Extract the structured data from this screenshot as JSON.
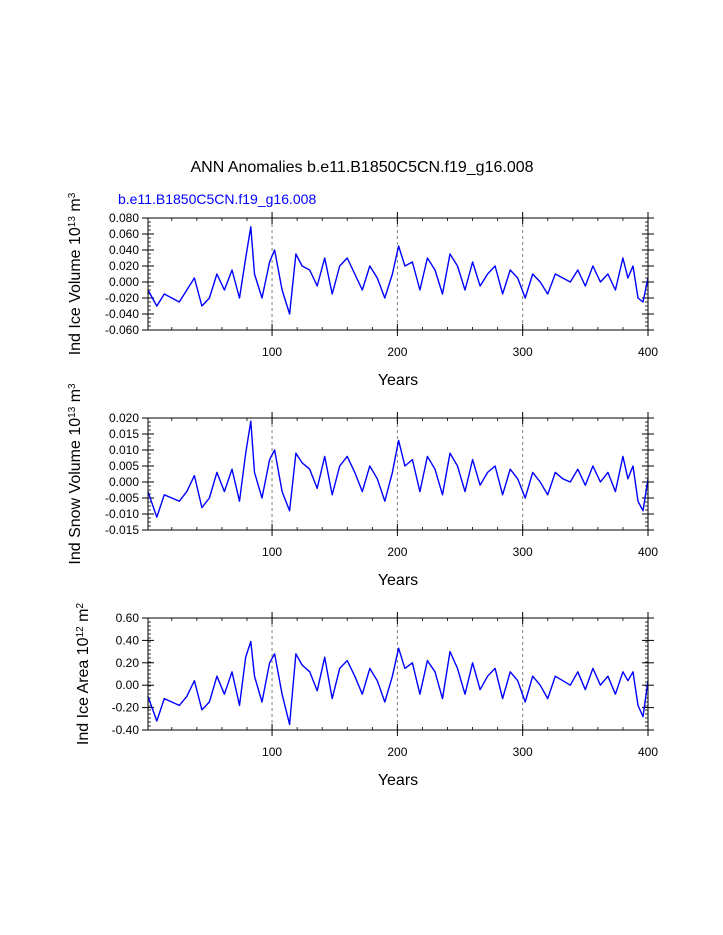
{
  "figure": {
    "title": "ANN Anomalies b.e11.B1850C5CN.f19_g16.008",
    "case_label": "b.e11.B1850C5CN.f19_g16.008",
    "line_color": "#0000ff",
    "ref_line_color": "#808080"
  },
  "chart_data": [
    {
      "type": "line",
      "name": "ice-volume",
      "title": "",
      "xlabel": "Years",
      "ylabel": {
        "prefix": "Ind Ice Volume 10",
        "exp1": "13",
        "mid": " m",
        "exp2": "3"
      },
      "xlim": [
        1,
        400
      ],
      "ylim": [
        -0.06,
        0.08
      ],
      "xticks": [
        100,
        200,
        300,
        400
      ],
      "xtick_labels": [
        "100",
        "200",
        "300",
        "400"
      ],
      "yticks": [
        -0.06,
        -0.04,
        -0.02,
        0.0,
        0.02,
        0.04,
        0.06,
        0.08
      ],
      "ytick_labels": [
        "-0.060",
        "-0.040",
        "-0.020",
        "0.000",
        "0.020",
        "0.040",
        "0.060",
        "0.080"
      ],
      "vlines": [
        100,
        200,
        300
      ],
      "series": [
        {
          "name": "Ind Ice Volume",
          "x": [
            1,
            8,
            14,
            20,
            26,
            32,
            38,
            44,
            50,
            56,
            62,
            68,
            74,
            79,
            83,
            86,
            92,
            98,
            102,
            108,
            114,
            119,
            124,
            130,
            136,
            142,
            148,
            154,
            160,
            166,
            172,
            178,
            184,
            190,
            196,
            201,
            206,
            212,
            218,
            224,
            230,
            236,
            242,
            248,
            254,
            260,
            266,
            272,
            278,
            284,
            290,
            296,
            302,
            308,
            314,
            320,
            326,
            332,
            338,
            344,
            350,
            356,
            362,
            368,
            374,
            380,
            384,
            388,
            392,
            396,
            400
          ],
          "values": [
            -0.01,
            -0.03,
            -0.015,
            -0.02,
            -0.025,
            -0.01,
            0.005,
            -0.03,
            -0.02,
            0.01,
            -0.01,
            0.015,
            -0.02,
            0.03,
            0.069,
            0.01,
            -0.02,
            0.025,
            0.04,
            -0.01,
            -0.04,
            0.035,
            0.02,
            0.015,
            -0.005,
            0.03,
            -0.015,
            0.02,
            0.03,
            0.01,
            -0.01,
            0.02,
            0.005,
            -0.02,
            0.01,
            0.045,
            0.02,
            0.025,
            -0.01,
            0.03,
            0.015,
            -0.015,
            0.035,
            0.02,
            -0.01,
            0.025,
            -0.005,
            0.01,
            0.02,
            -0.015,
            0.015,
            0.005,
            -0.02,
            0.01,
            0.0,
            -0.015,
            0.01,
            0.005,
            0.0,
            0.015,
            -0.005,
            0.02,
            0.0,
            0.01,
            -0.01,
            0.03,
            0.005,
            0.02,
            -0.02,
            -0.025,
            0.005
          ]
        }
      ]
    },
    {
      "type": "line",
      "name": "snow-volume",
      "title": "",
      "xlabel": "Years",
      "ylabel": {
        "prefix": "Ind Snow Volume 10",
        "exp1": "13",
        "mid": " m",
        "exp2": "3"
      },
      "xlim": [
        1,
        400
      ],
      "ylim": [
        -0.015,
        0.02
      ],
      "xticks": [
        100,
        200,
        300,
        400
      ],
      "xtick_labels": [
        "100",
        "200",
        "300",
        "400"
      ],
      "yticks": [
        -0.015,
        -0.01,
        -0.005,
        0.0,
        0.005,
        0.01,
        0.015,
        0.02
      ],
      "ytick_labels": [
        "-0.015",
        "-0.010",
        "-0.005",
        "0.000",
        "0.005",
        "0.010",
        "0.015",
        "0.020"
      ],
      "vlines": [
        100,
        200,
        300
      ],
      "series": [
        {
          "name": "Ind Snow Volume",
          "x": [
            1,
            8,
            14,
            20,
            26,
            32,
            38,
            44,
            50,
            56,
            62,
            68,
            74,
            79,
            83,
            86,
            92,
            98,
            102,
            108,
            114,
            119,
            124,
            130,
            136,
            142,
            148,
            154,
            160,
            166,
            172,
            178,
            184,
            190,
            196,
            201,
            206,
            212,
            218,
            224,
            230,
            236,
            242,
            248,
            254,
            260,
            266,
            272,
            278,
            284,
            290,
            296,
            302,
            308,
            314,
            320,
            326,
            332,
            338,
            344,
            350,
            356,
            362,
            368,
            374,
            380,
            384,
            388,
            392,
            396,
            400
          ],
          "values": [
            -0.003,
            -0.011,
            -0.004,
            -0.005,
            -0.006,
            -0.003,
            0.002,
            -0.008,
            -0.005,
            0.003,
            -0.003,
            0.004,
            -0.006,
            0.009,
            0.019,
            0.003,
            -0.005,
            0.007,
            0.01,
            -0.003,
            -0.009,
            0.009,
            0.006,
            0.004,
            -0.002,
            0.008,
            -0.004,
            0.005,
            0.008,
            0.003,
            -0.003,
            0.005,
            0.001,
            -0.006,
            0.003,
            0.013,
            0.005,
            0.007,
            -0.003,
            0.008,
            0.004,
            -0.004,
            0.009,
            0.005,
            -0.003,
            0.007,
            -0.001,
            0.003,
            0.005,
            -0.004,
            0.004,
            0.001,
            -0.005,
            0.003,
            0.0,
            -0.004,
            0.003,
            0.001,
            0.0,
            0.004,
            -0.001,
            0.005,
            0.0,
            0.003,
            -0.003,
            0.008,
            0.001,
            0.005,
            -0.006,
            -0.009,
            0.001
          ]
        }
      ]
    },
    {
      "type": "line",
      "name": "ice-area",
      "title": "",
      "xlabel": "Years",
      "ylabel": {
        "prefix": "Ind Ice Area 10",
        "exp1": "12",
        "mid": " m",
        "exp2": "2"
      },
      "xlim": [
        1,
        400
      ],
      "ylim": [
        -0.4,
        0.6
      ],
      "xticks": [
        100,
        200,
        300,
        400
      ],
      "xtick_labels": [
        "100",
        "200",
        "300",
        "400"
      ],
      "yticks": [
        -0.4,
        -0.2,
        0.0,
        0.2,
        0.4,
        0.6
      ],
      "ytick_labels": [
        "-0.40",
        "-0.20",
        "0.00",
        "0.20",
        "0.40",
        "0.60"
      ],
      "vlines": [
        100,
        200,
        300
      ],
      "series": [
        {
          "name": "Ind Ice Area",
          "x": [
            1,
            8,
            14,
            20,
            26,
            32,
            38,
            44,
            50,
            56,
            62,
            68,
            74,
            79,
            83,
            86,
            92,
            98,
            102,
            108,
            114,
            119,
            124,
            130,
            136,
            142,
            148,
            154,
            160,
            166,
            172,
            178,
            184,
            190,
            196,
            201,
            206,
            212,
            218,
            224,
            230,
            236,
            242,
            248,
            254,
            260,
            266,
            272,
            278,
            284,
            290,
            296,
            302,
            308,
            314,
            320,
            326,
            332,
            338,
            344,
            350,
            356,
            362,
            368,
            374,
            380,
            384,
            388,
            392,
            396,
            400
          ],
          "values": [
            -0.1,
            -0.32,
            -0.12,
            -0.15,
            -0.18,
            -0.1,
            0.04,
            -0.22,
            -0.15,
            0.08,
            -0.08,
            0.12,
            -0.18,
            0.25,
            0.39,
            0.08,
            -0.15,
            0.2,
            0.28,
            -0.08,
            -0.35,
            0.28,
            0.18,
            0.12,
            -0.05,
            0.25,
            -0.12,
            0.15,
            0.22,
            0.08,
            -0.08,
            0.15,
            0.04,
            -0.15,
            0.08,
            0.33,
            0.15,
            0.2,
            -0.08,
            0.22,
            0.12,
            -0.12,
            0.3,
            0.15,
            -0.08,
            0.2,
            -0.04,
            0.08,
            0.15,
            -0.12,
            0.12,
            0.04,
            -0.15,
            0.08,
            0.0,
            -0.12,
            0.08,
            0.04,
            0.0,
            0.12,
            -0.04,
            0.15,
            0.0,
            0.08,
            -0.08,
            0.12,
            0.04,
            0.12,
            -0.18,
            -0.28,
            0.04
          ]
        }
      ]
    }
  ]
}
